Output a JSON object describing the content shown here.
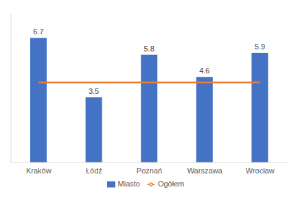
{
  "chart_data": {
    "type": "bar",
    "categories": [
      "Kraków",
      "Łódź",
      "Poznań",
      "Warszawa",
      "Wrocław"
    ],
    "series": [
      {
        "name": "Miasto",
        "type": "bar",
        "color": "#4472c4",
        "values": [
          6.7,
          3.5,
          5.8,
          4.6,
          5.9
        ],
        "data_labels": true
      },
      {
        "name": "Ogółem",
        "type": "line",
        "color": "#ed7d31",
        "marker": "none",
        "values": [
          4.3,
          4.3,
          4.3,
          4.3,
          4.3
        ]
      }
    ],
    "ylim": [
      0,
      8
    ],
    "legend": "bottom",
    "grid": false,
    "tick_labels": "x"
  }
}
